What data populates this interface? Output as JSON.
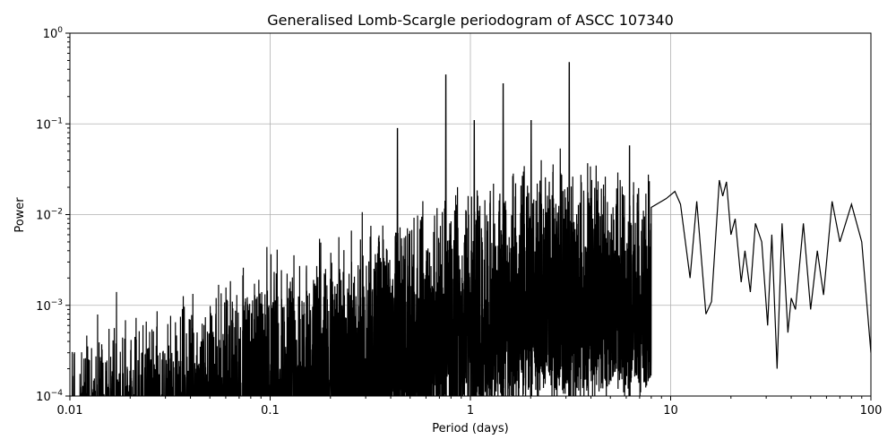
{
  "chart_data": {
    "type": "line",
    "title": "Generalised Lomb-Scargle periodogram of ASCC 107340",
    "xlabel": "Period (days)",
    "ylabel": "Power",
    "xscale": "log",
    "yscale": "log",
    "xlim": [
      0.01,
      100
    ],
    "ylim": [
      0.0001,
      1
    ],
    "xticks": [
      "0.01",
      "0.1",
      "1",
      "10",
      "100"
    ],
    "yticks": [
      "10^-4",
      "10^-3",
      "10^-2",
      "10^-1",
      "10^0"
    ],
    "grid": true,
    "line_color": "#000000",
    "notable_peaks": [
      {
        "period": 3.1,
        "power": 0.48
      },
      {
        "period": 0.75,
        "power": 0.35
      },
      {
        "period": 1.45,
        "power": 0.28
      },
      {
        "period": 2.0,
        "power": 0.11
      },
      {
        "period": 1.04,
        "power": 0.11
      },
      {
        "period": 0.43,
        "power": 0.09
      },
      {
        "period": 6.2,
        "power": 0.058
      },
      {
        "period": 17.5,
        "power": 0.024
      },
      {
        "period": 19.0,
        "power": 0.023
      },
      {
        "period": 64,
        "power": 0.014
      },
      {
        "period": 80,
        "power": 0.013
      }
    ],
    "smooth_tail": [
      [
        8.0,
        0.012
      ],
      [
        9.5,
        0.015
      ],
      [
        10.5,
        0.018
      ],
      [
        11.2,
        0.013
      ],
      [
        12.5,
        0.002
      ],
      [
        13.5,
        0.014
      ],
      [
        15.0,
        0.0008
      ],
      [
        16.0,
        0.0011
      ],
      [
        17.5,
        0.024
      ],
      [
        18.2,
        0.016
      ],
      [
        19.0,
        0.023
      ],
      [
        20.0,
        0.006
      ],
      [
        21.0,
        0.009
      ],
      [
        22.5,
        0.0018
      ],
      [
        23.5,
        0.004
      ],
      [
        25.0,
        0.0014
      ],
      [
        26.5,
        0.008
      ],
      [
        28.5,
        0.005
      ],
      [
        30.5,
        0.0006
      ],
      [
        32.0,
        0.006
      ],
      [
        34.0,
        0.0002
      ],
      [
        36.0,
        0.008
      ],
      [
        38.5,
        0.0005
      ],
      [
        40.0,
        0.0012
      ],
      [
        42.0,
        0.0009
      ],
      [
        46.0,
        0.008
      ],
      [
        50.0,
        0.0009
      ],
      [
        54.0,
        0.004
      ],
      [
        58.0,
        0.0013
      ],
      [
        64.0,
        0.014
      ],
      [
        70.0,
        0.005
      ],
      [
        80.0,
        0.013
      ],
      [
        90.0,
        0.005
      ],
      [
        100.0,
        0.0003
      ]
    ]
  }
}
